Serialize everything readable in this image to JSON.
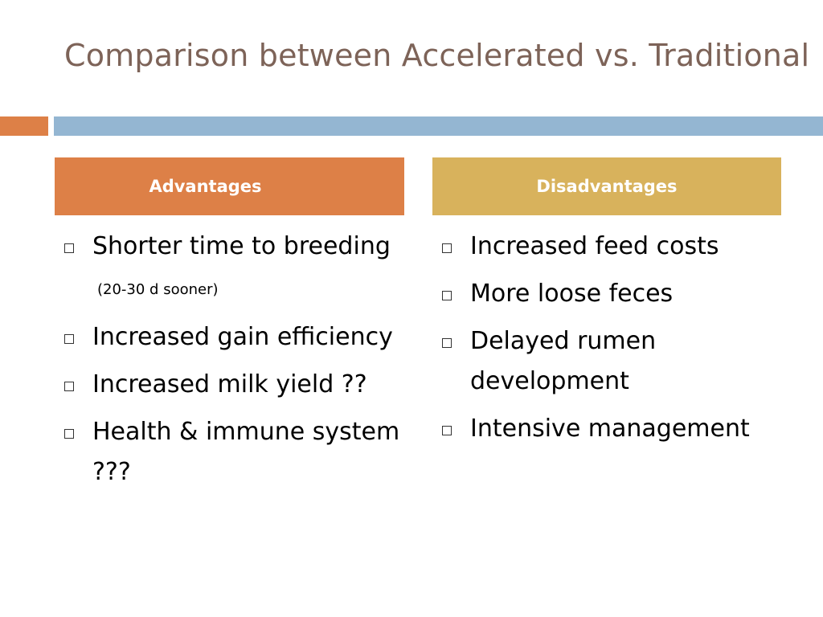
{
  "slide": {
    "title": "Comparison between Accelerated vs. Traditional"
  },
  "columns": {
    "advantages": {
      "header": "Advantages",
      "items": [
        {
          "text": "Shorter time to breeding",
          "note": "(20-30 d sooner)"
        },
        {
          "text": "Increased gain efficiency"
        },
        {
          "text": "Increased milk yield ??"
        },
        {
          "text": "Health & immune system ???"
        }
      ]
    },
    "disadvantages": {
      "header": "Disadvantages",
      "items": [
        {
          "text": "Increased feed costs"
        },
        {
          "text": "More loose feces"
        },
        {
          "text": "Delayed rumen development"
        },
        {
          "text": "Intensive management"
        }
      ]
    }
  },
  "colors": {
    "title": "#7d6358",
    "accent_orange": "#dd8047",
    "accent_blue": "#94b6d2",
    "advantages_header": "#dd8047",
    "disadvantages_header": "#d8b25c"
  },
  "icons": {
    "bullet": "square-bullet-icon"
  }
}
